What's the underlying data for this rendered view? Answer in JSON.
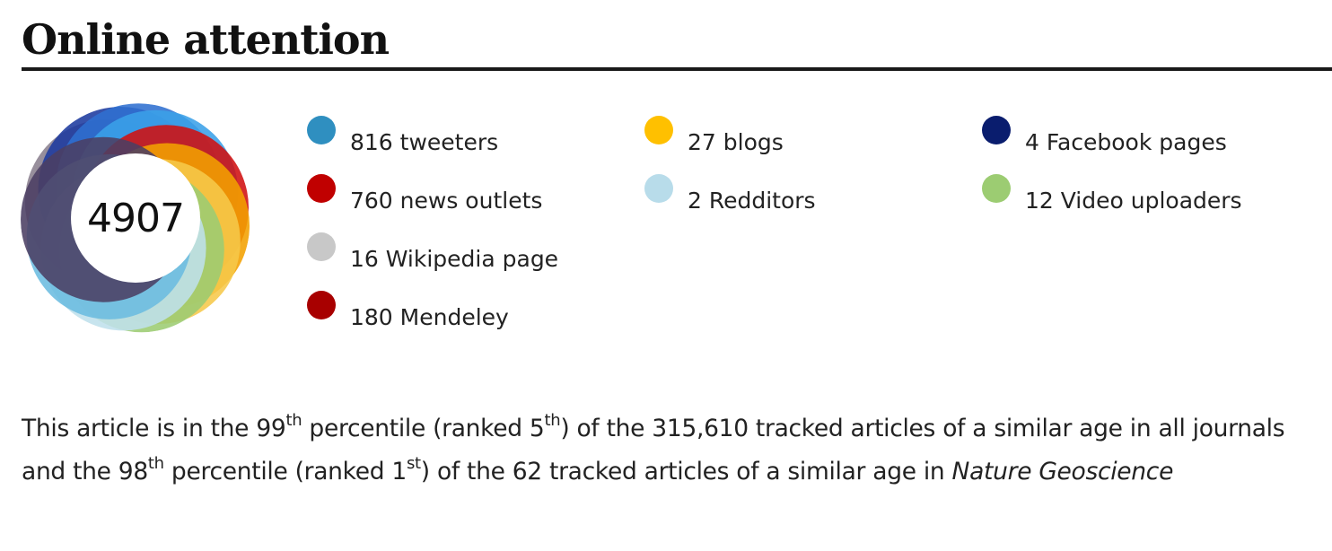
{
  "heading": "Online attention",
  "score": "4907",
  "legend": [
    {
      "label": "816 tweeters",
      "color": "#2f8fc0"
    },
    {
      "label": "760 news outlets",
      "color": "#c00000"
    },
    {
      "label": "16 Wikipedia page",
      "color": "#c8c8c8"
    },
    {
      "label": "180 Mendeley",
      "color": "#a80000"
    },
    {
      "label": "27 blogs",
      "color": "#ffc000"
    },
    {
      "label": "2 Redditors",
      "color": "#b8dcea"
    },
    {
      "label": "4 Facebook pages",
      "color": "#0a1d6e"
    },
    {
      "label": "12 Video uploaders",
      "color": "#9ccc72"
    }
  ],
  "percentile": {
    "p1": "This article is in the ",
    "n1": "99",
    "s1": "th",
    "p2": " percentile (ranked ",
    "n2": "5",
    "s2": "th",
    "p3": ") of the 315,610 tracked articles of a similar age in all journals and the ",
    "n3": "98",
    "s3": "th",
    "p4": " percentile (ranked ",
    "n4": "1",
    "s4": "st",
    "p5": ") of the 62 tracked articles of a similar age in ",
    "journal": "Nature Geoscience"
  }
}
